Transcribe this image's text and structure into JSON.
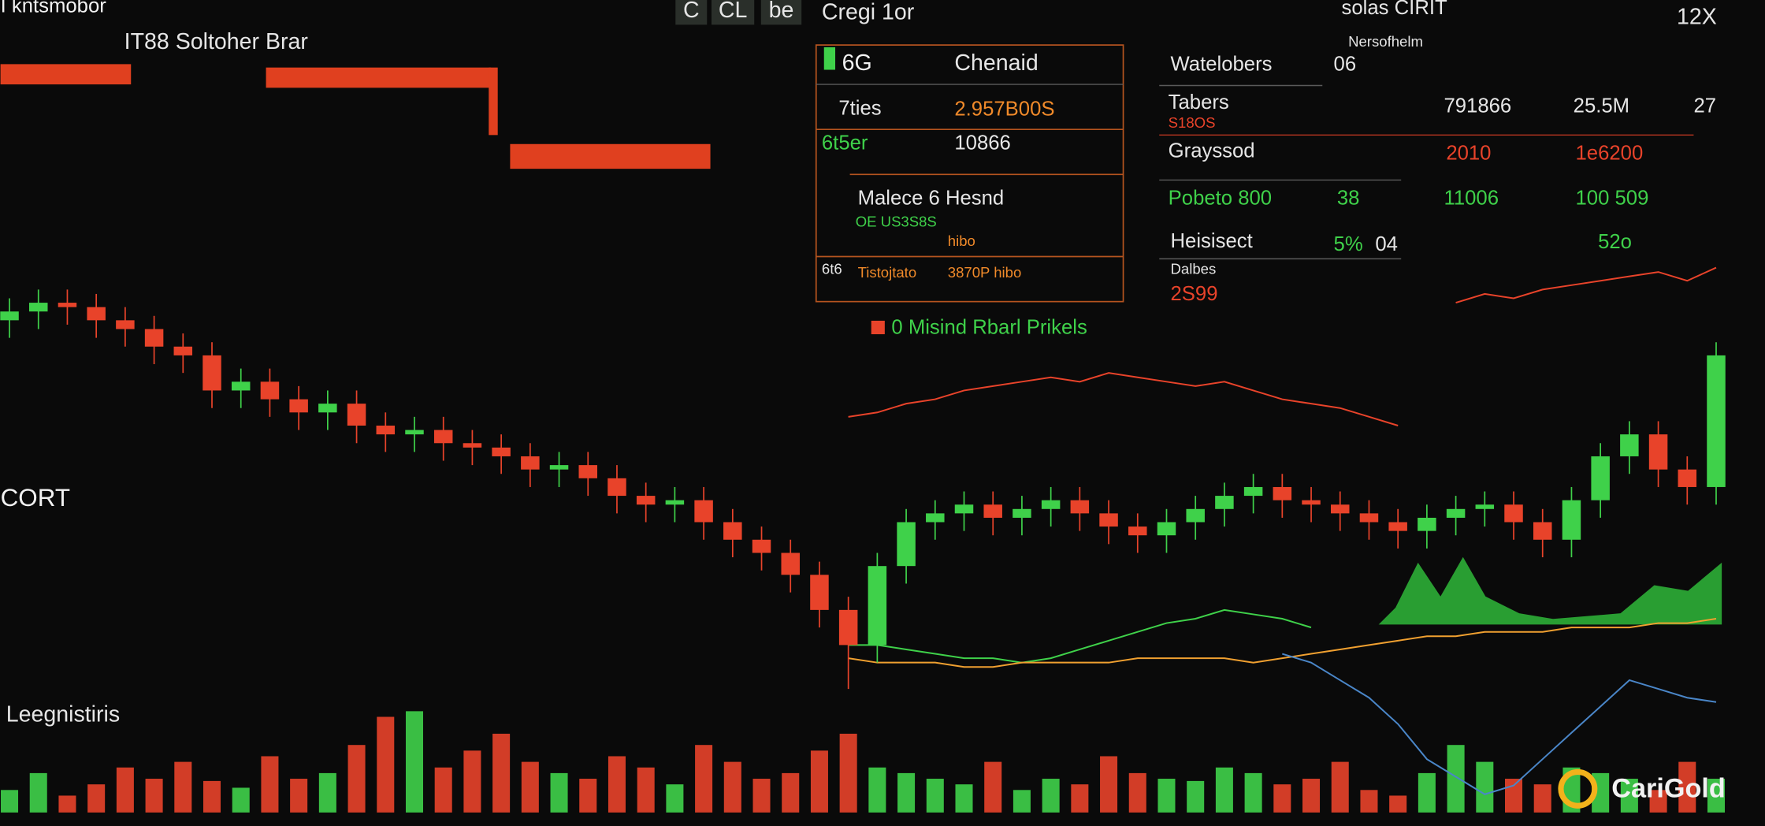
{
  "header": {
    "app": "I kntsmobor",
    "subtitle": "IT88 Soltoher Brar",
    "buttons": [
      "C",
      "CL",
      "be"
    ],
    "center": "Cregi 1or",
    "right": "solas CIRIT",
    "zoom": "12X"
  },
  "panel": {
    "r1": [
      "6G",
      "Chenaid"
    ],
    "r2": [
      "7ties",
      "2.957B00S"
    ],
    "r3": [
      "6t5er",
      "10866"
    ],
    "r4": "Malece 6 Hesnd",
    "r5": [
      "OE US3S8S",
      "hibo"
    ],
    "r6": [
      "6t6",
      "Tistojtato",
      "3870P hibo"
    ],
    "legend": "0 Misind Rbarl Prikels"
  },
  "table": {
    "title": "Watelobers",
    "title_value": "06",
    "note": "Nersofhelm",
    "rows": [
      [
        "Tabers",
        "S18OS",
        "791866",
        "25.5M",
        "27"
      ],
      [
        "Grayssod",
        "2010",
        "1e6200"
      ],
      [
        "Pobeto 800",
        "38",
        "11006",
        "100 509"
      ],
      [
        "Heisisect",
        "5%",
        "04",
        "52o"
      ],
      [
        "Dalbes",
        "2S99"
      ]
    ]
  },
  "labels": {
    "side": "CORT",
    "lower": "Leegnistiris",
    "brand": "CariGold"
  },
  "chart": {
    "type": "candlestick",
    "ylim": [
      -30,
      100
    ],
    "up_color": "#3fd14a",
    "down_color": "#e8432a",
    "open": [
      86,
      88,
      90,
      89,
      86,
      84,
      80,
      78,
      70,
      72,
      68,
      65,
      67,
      62,
      60,
      61,
      58,
      57,
      55,
      52,
      53,
      50,
      46,
      44,
      45,
      40,
      36,
      33,
      28,
      20,
      12,
      30,
      40,
      42,
      44,
      41,
      43,
      45,
      42,
      39,
      37,
      40,
      43,
      46,
      48,
      45,
      44,
      42,
      40,
      38,
      41,
      43,
      44,
      40,
      36,
      45,
      55,
      60,
      52,
      48
    ],
    "close": [
      88,
      90,
      89,
      86,
      84,
      80,
      78,
      70,
      72,
      68,
      65,
      67,
      62,
      60,
      61,
      58,
      57,
      55,
      52,
      53,
      50,
      46,
      44,
      45,
      40,
      36,
      33,
      28,
      20,
      12,
      30,
      40,
      42,
      44,
      41,
      43,
      45,
      42,
      39,
      37,
      40,
      43,
      46,
      48,
      45,
      44,
      42,
      40,
      38,
      41,
      43,
      44,
      40,
      36,
      45,
      55,
      60,
      52,
      48,
      78
    ],
    "high": [
      91,
      93,
      93,
      92,
      89,
      87,
      83,
      81,
      75,
      75,
      71,
      70,
      70,
      65,
      64,
      64,
      61,
      60,
      58,
      56,
      56,
      53,
      49,
      48,
      48,
      43,
      39,
      36,
      31,
      23,
      33,
      43,
      45,
      47,
      47,
      46,
      48,
      48,
      45,
      42,
      43,
      46,
      49,
      51,
      51,
      48,
      47,
      45,
      43,
      44,
      46,
      47,
      47,
      43,
      48,
      58,
      63,
      63,
      55,
      81
    ],
    "low": [
      82,
      84,
      85,
      82,
      80,
      76,
      74,
      66,
      66,
      64,
      61,
      61,
      58,
      56,
      56,
      54,
      53,
      51,
      48,
      48,
      46,
      42,
      40,
      40,
      36,
      32,
      29,
      24,
      16,
      2,
      8,
      26,
      36,
      38,
      37,
      37,
      39,
      38,
      35,
      33,
      33,
      36,
      39,
      42,
      41,
      40,
      38,
      36,
      34,
      34,
      37,
      39,
      36,
      32,
      32,
      41,
      51,
      48,
      44,
      44
    ],
    "volume_ylim": [
      0,
      100
    ],
    "volume": [
      20,
      35,
      15,
      25,
      40,
      30,
      45,
      28,
      22,
      50,
      30,
      35,
      60,
      85,
      90,
      40,
      55,
      70,
      45,
      35,
      30,
      50,
      40,
      25,
      60,
      45,
      30,
      35,
      55,
      70,
      40,
      35,
      30,
      25,
      45,
      20,
      30,
      25,
      50,
      35,
      30,
      28,
      40,
      35,
      25,
      30,
      45,
      20,
      15,
      35,
      60,
      45,
      30,
      25,
      40,
      35,
      30,
      20,
      45,
      30
    ],
    "lines": [
      {
        "color": "#e8432a",
        "values": [
          null,
          null,
          null,
          null,
          null,
          null,
          null,
          null,
          null,
          null,
          null,
          null,
          null,
          null,
          null,
          null,
          null,
          null,
          null,
          null,
          null,
          null,
          null,
          null,
          null,
          null,
          null,
          null,
          null,
          64,
          65,
          67,
          68,
          70,
          71,
          72,
          73,
          72,
          74,
          73,
          72,
          71,
          72,
          70,
          68,
          67,
          66,
          64,
          62,
          null,
          90,
          92,
          91,
          93,
          94,
          95,
          96,
          97,
          95,
          98
        ]
      },
      {
        "color": "#3fd14a",
        "values": [
          null,
          null,
          null,
          null,
          null,
          null,
          null,
          null,
          null,
          null,
          null,
          null,
          null,
          null,
          null,
          null,
          null,
          null,
          null,
          null,
          null,
          null,
          null,
          null,
          null,
          null,
          null,
          null,
          null,
          12,
          12,
          11,
          10,
          9,
          9,
          8,
          9,
          11,
          13,
          15,
          17,
          18,
          20,
          19,
          18,
          16,
          null,
          null,
          null,
          null,
          null,
          null,
          null,
          null,
          null,
          null,
          null,
          null,
          null,
          null
        ]
      },
      {
        "color": "#f0a030",
        "values": [
          null,
          null,
          null,
          null,
          null,
          null,
          null,
          null,
          null,
          null,
          null,
          null,
          null,
          null,
          null,
          null,
          null,
          null,
          null,
          null,
          null,
          null,
          null,
          null,
          null,
          null,
          null,
          null,
          null,
          9,
          8,
          8,
          8,
          7,
          7,
          8,
          8,
          8,
          8,
          9,
          9,
          9,
          9,
          8,
          9,
          10,
          11,
          12,
          13,
          14,
          14,
          15,
          15,
          15,
          16,
          16,
          16,
          17,
          17,
          18
        ]
      },
      {
        "color": "#4a86c8",
        "values": [
          null,
          null,
          null,
          null,
          null,
          null,
          null,
          null,
          null,
          null,
          null,
          null,
          null,
          null,
          null,
          null,
          null,
          null,
          null,
          null,
          null,
          null,
          null,
          null,
          null,
          null,
          null,
          null,
          null,
          null,
          null,
          null,
          null,
          null,
          null,
          null,
          null,
          null,
          null,
          null,
          null,
          null,
          null,
          null,
          10,
          8,
          4,
          0,
          -6,
          -14,
          -18,
          -22,
          -20,
          -14,
          -8,
          -2,
          4,
          2,
          0,
          -1
        ]
      }
    ]
  }
}
